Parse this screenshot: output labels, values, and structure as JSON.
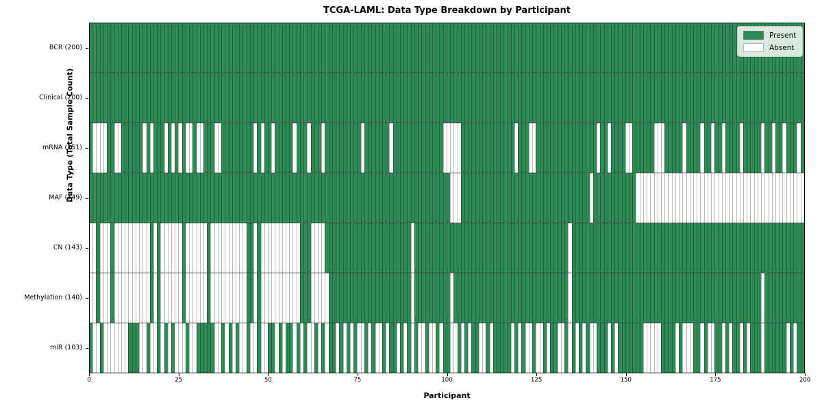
{
  "title": "TCGA-LAML: Data Type Breakdown by Participant",
  "axes": {
    "x_label": "Participant",
    "y_label": "Data Type (Total Sample Count)"
  },
  "legend": {
    "items": [
      {
        "label": "Present",
        "color": "#2e8b57"
      },
      {
        "label": "Absent",
        "color": "#ffffff"
      }
    ]
  },
  "colors": {
    "present": "#2e8b57",
    "absent": "#ffffff",
    "plot_border": "#000000"
  },
  "chart_data": {
    "type": "heatmap",
    "title": "TCGA-LAML: Data Type Breakdown by Participant",
    "xlabel": "Participant",
    "ylabel": "Data Type (Total Sample Count)",
    "x_axis": {
      "min": 0,
      "max": 200,
      "ticks": [
        0,
        25,
        50,
        75,
        100,
        125,
        150,
        175,
        200
      ]
    },
    "legend_entries": [
      "Present",
      "Absent"
    ],
    "cell_encoding": "1=Present, 0=Absent; index = participant 0..199",
    "rows": [
      {
        "label": "BCR (200)",
        "present_count": 200,
        "pattern": "11111111111111111111111111111111111111111111111111111111111111111111111111111111111111111111111111111111111111111111111111111111111111111111111111111111111111111111111111111111111111111111111111111111"
      },
      {
        "label": "Clinical (200)",
        "present_count": 200,
        "pattern": "11111111111111111111111111111111111111111111111111111111111111111111111111111111111111111111111111111111111111111111111111111111111111111111111111111111111111111111111111111111111111111111111111111111"
      },
      {
        "label": "mRNA (151)",
        "present_count": 151,
        "pattern": "10000110011111101011101010100100111001111111110101101111101110111011111111110111111101111111111111100000111111111111111011100111111111111111110110111100111111000111110111101101101111011111011011011101"
      },
      {
        "label": "MAF (149)",
        "present_count": 149,
        "pattern": "11111111111111111111111111111111111111111111111111111111111111111111111111111111111111111111111111111000111111111111111111111111111111111111011111111111100000000000000000000000000000000000000000000000"
      },
      {
        "label": "CN (143)",
        "present_count": 143,
        "pattern": "00100010000000000101000000100000010000000000110100000000000111000011111111111111111111111101111111111111111111111111111111111111111111011111111111111111111111111111111111111111111111111111111111111111"
      },
      {
        "label": "Methylation (140)",
        "present_count": 140,
        "pattern": "00100010000000000101000000100000010000000000110100000000000111000001111111111111111111111101111111111011111111111111111111111111111111011111111111111111111111111111111111111111111111111111011111111111"
      },
      {
        "label": "miR (103)",
        "present_count": 103,
        "pattern": "10010000000111001001010100010011111001010100100100110101101010010101101010100101001011010101001001011001010110010111110101001001011001010101001110101111111000001111010001101001101011010111011111101011"
      }
    ]
  }
}
